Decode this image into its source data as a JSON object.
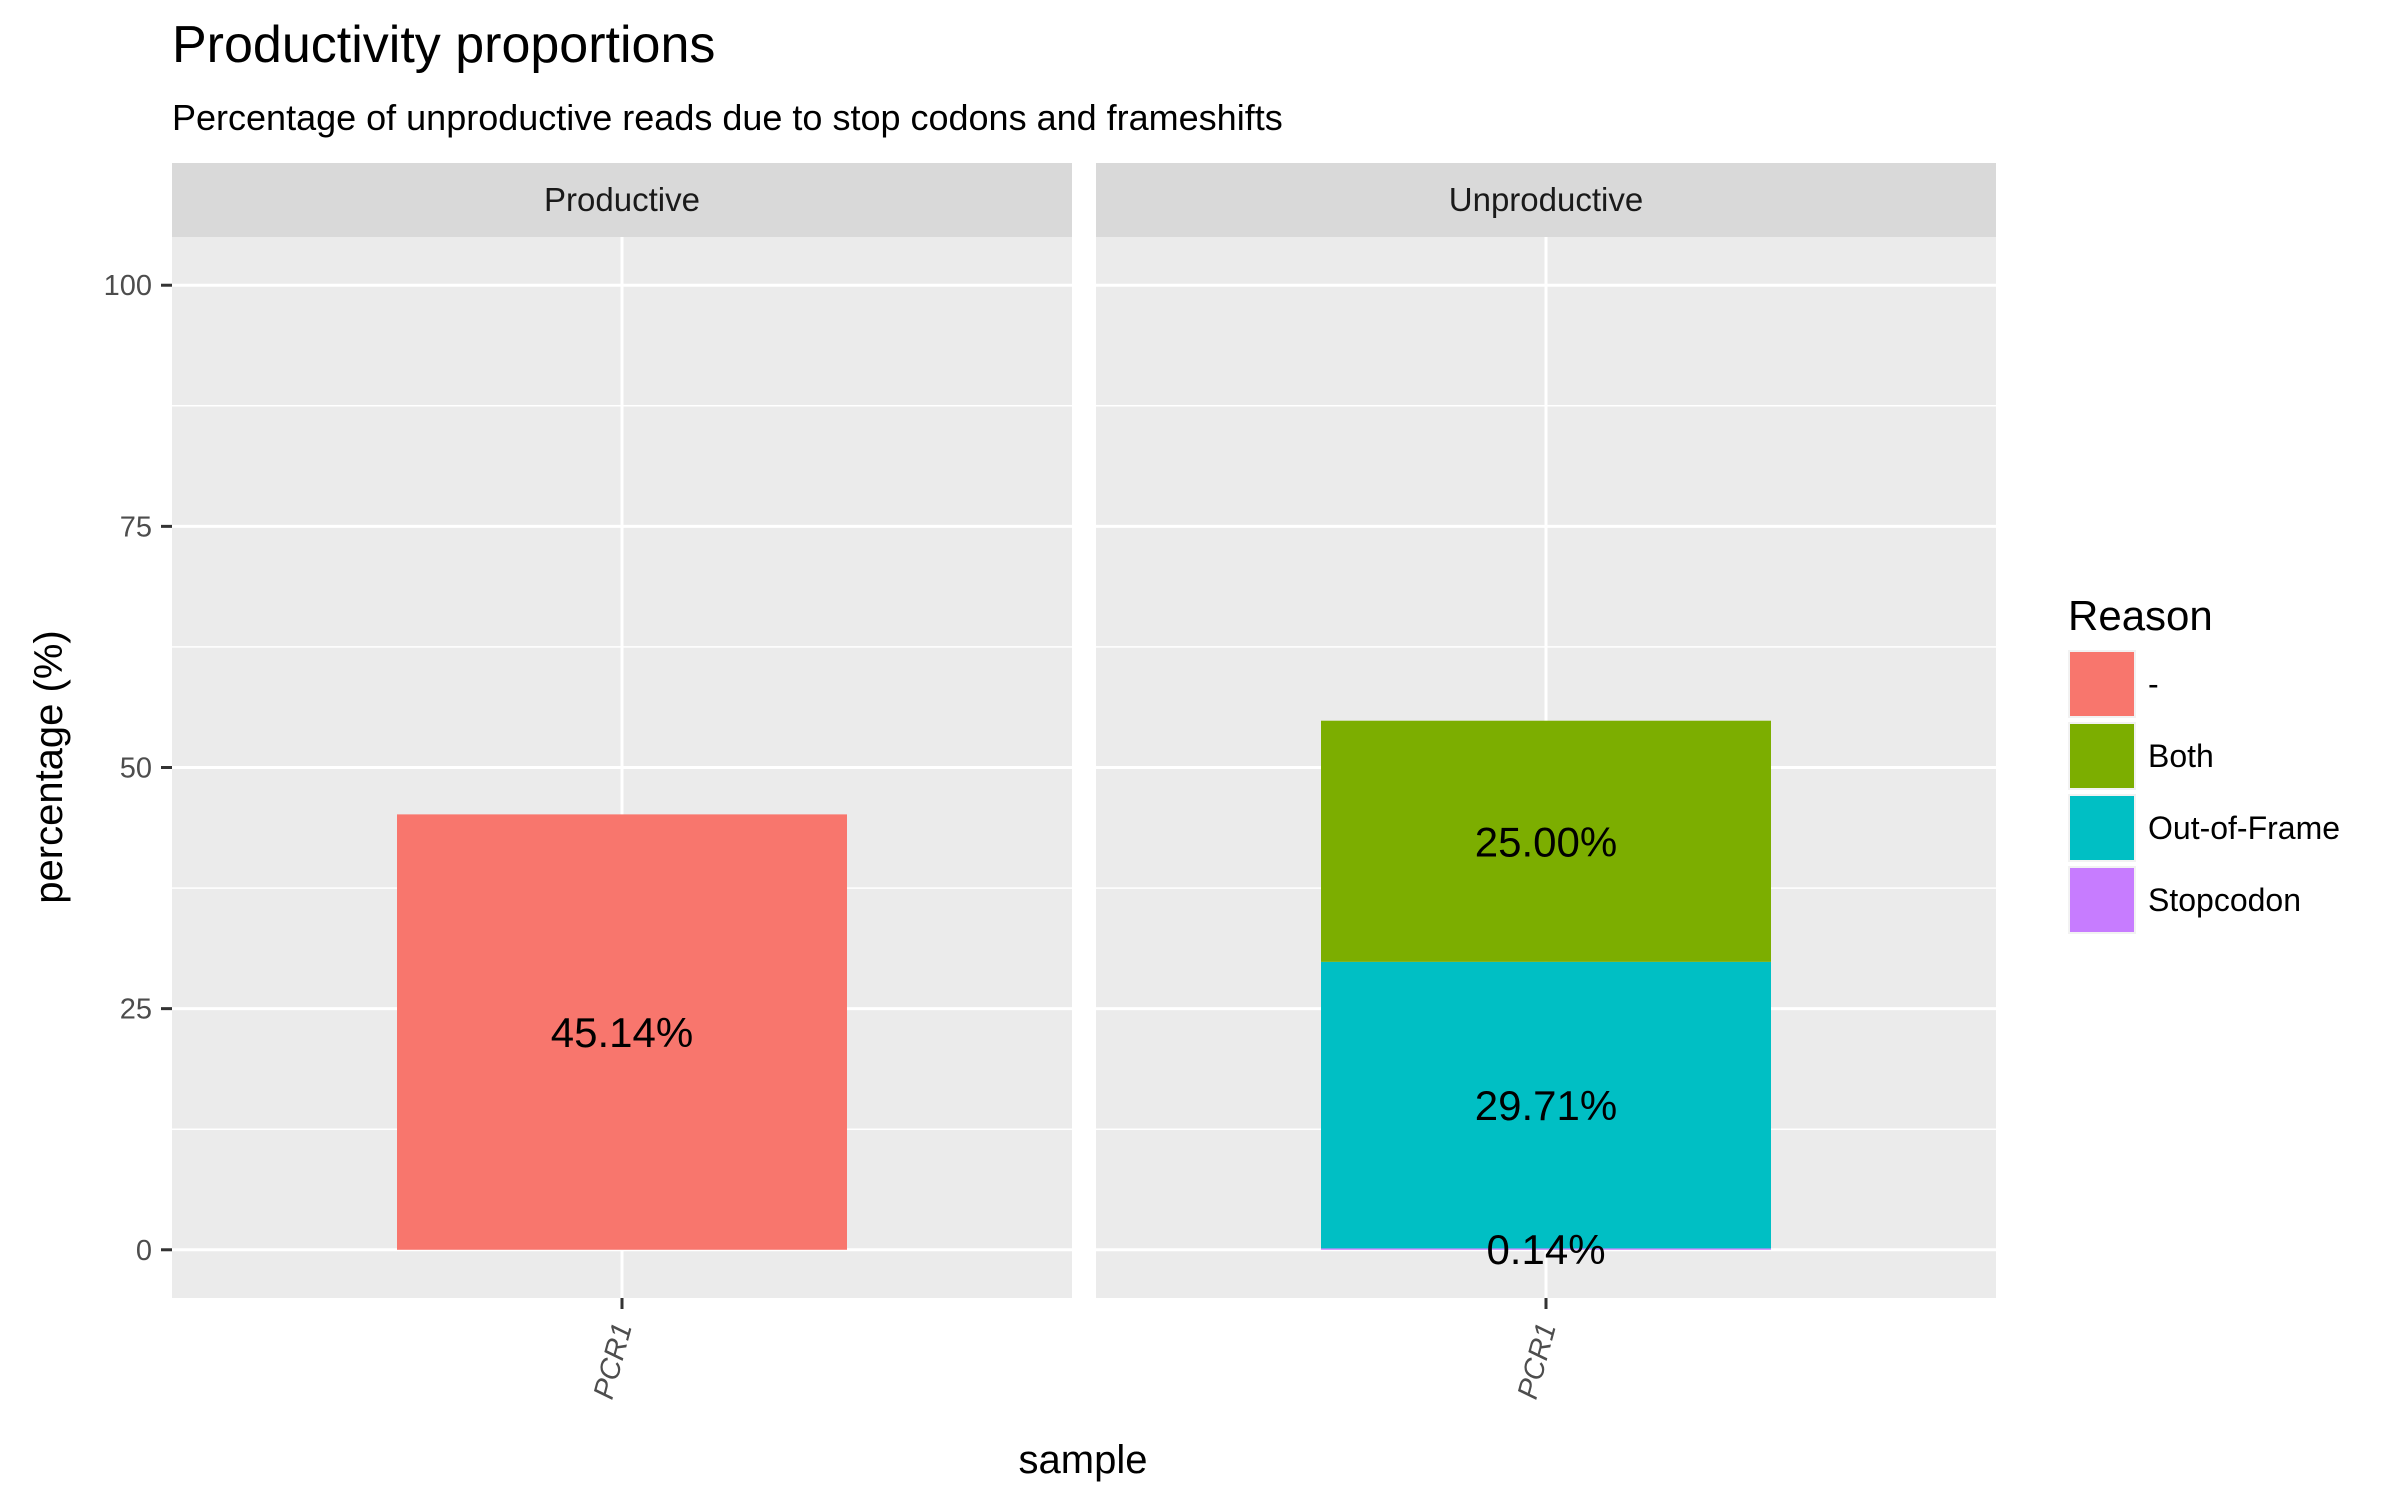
{
  "chart_data": {
    "type": "bar",
    "stacked": true,
    "title": "Productivity proportions",
    "subtitle": "Percentage of unproductive reads due to stop codons and frameshifts",
    "xlabel": "sample",
    "ylabel": "percentage (%)",
    "ylim": [
      -5,
      105
    ],
    "yticks": [
      0,
      25,
      50,
      75,
      100
    ],
    "grid": true,
    "legend": {
      "title": "Reason",
      "position": "right",
      "entries": [
        {
          "name": "-",
          "color": "#F8766D"
        },
        {
          "name": "Both",
          "color": "#7CAE00"
        },
        {
          "name": "Out-of-Frame",
          "color": "#00BFC4"
        },
        {
          "name": "Stopcodon",
          "color": "#C77CFF"
        }
      ]
    },
    "facets": [
      {
        "name": "Productive",
        "categories": [
          "PCR1"
        ],
        "segments": [
          {
            "reason": "-",
            "value": 45.14,
            "label": "45.14%"
          }
        ]
      },
      {
        "name": "Unproductive",
        "categories": [
          "PCR1"
        ],
        "segments": [
          {
            "reason": "Stopcodon",
            "value": 0.14,
            "label": "0.14%"
          },
          {
            "reason": "Out-of-Frame",
            "value": 29.71,
            "label": "29.71%"
          },
          {
            "reason": "Both",
            "value": 25.0,
            "label": "25.00%"
          }
        ]
      }
    ]
  }
}
